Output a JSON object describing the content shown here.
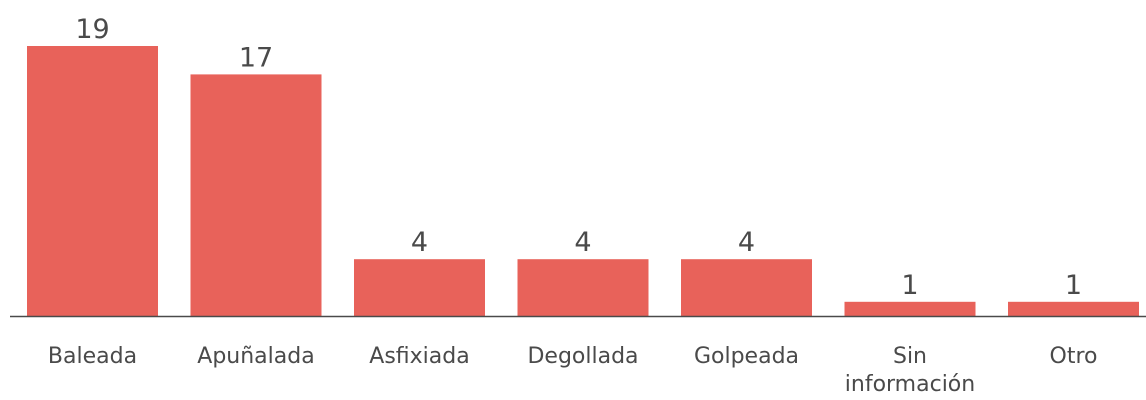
{
  "chart_data": {
    "type": "bar",
    "categories": [
      "Baleada",
      "Apuñalada",
      "Asfixiada",
      "Degollada",
      "Golpeada",
      "Sin información",
      "Otro"
    ],
    "category_lines": [
      [
        "Baleada"
      ],
      [
        "Apuñalada"
      ],
      [
        "Asfixiada"
      ],
      [
        "Degollada"
      ],
      [
        "Golpeada"
      ],
      [
        "Sin",
        "información"
      ],
      [
        "Otro"
      ]
    ],
    "values": [
      19,
      17,
      4,
      4,
      4,
      1,
      1
    ],
    "data_labels": [
      "19",
      "17",
      "4",
      "4",
      "4",
      "1",
      "1"
    ],
    "title": "",
    "xlabel": "",
    "ylabel": "",
    "ylim": [
      0,
      19
    ],
    "grid": false,
    "legend": "none",
    "colors": {
      "bar": "#E8625A",
      "axis": "#4a4a4a",
      "text": "#4a4a4a"
    }
  }
}
